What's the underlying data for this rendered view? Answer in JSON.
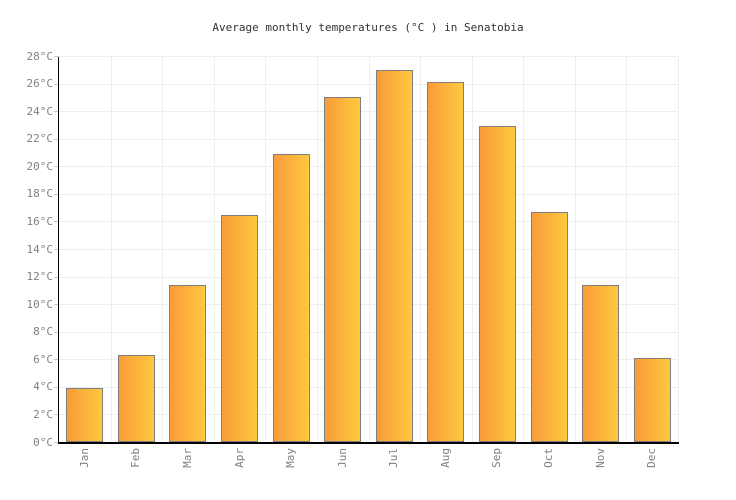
{
  "title": "Average monthly temperatures (°C ) in Senatobia",
  "chart_data": {
    "type": "bar",
    "title": "Average monthly temperatures (°C ) in Senatobia",
    "categories": [
      "Jan",
      "Feb",
      "Mar",
      "Apr",
      "May",
      "Jun",
      "Jul",
      "Aug",
      "Sep",
      "Oct",
      "Nov",
      "Dec"
    ],
    "values": [
      3.9,
      6.3,
      11.4,
      16.5,
      20.9,
      25.0,
      27.0,
      26.1,
      22.9,
      16.7,
      11.4,
      6.1
    ],
    "xlabel": "",
    "ylabel": "",
    "ylim": [
      0,
      28
    ],
    "ytick_step": 2,
    "ytick_suffix": "°C",
    "grid": true,
    "legend": false,
    "bar_gradient_left": "#F99B39",
    "bar_gradient_right": "#FEC93F",
    "bar_border_color": "#7E7E7E",
    "grid_color": "#EEEEEE",
    "axis_color": "#000000",
    "tick_color": "#C8C8C8",
    "label_color": "#808080",
    "title_color": "#333333",
    "background": "#FFFFFF"
  }
}
